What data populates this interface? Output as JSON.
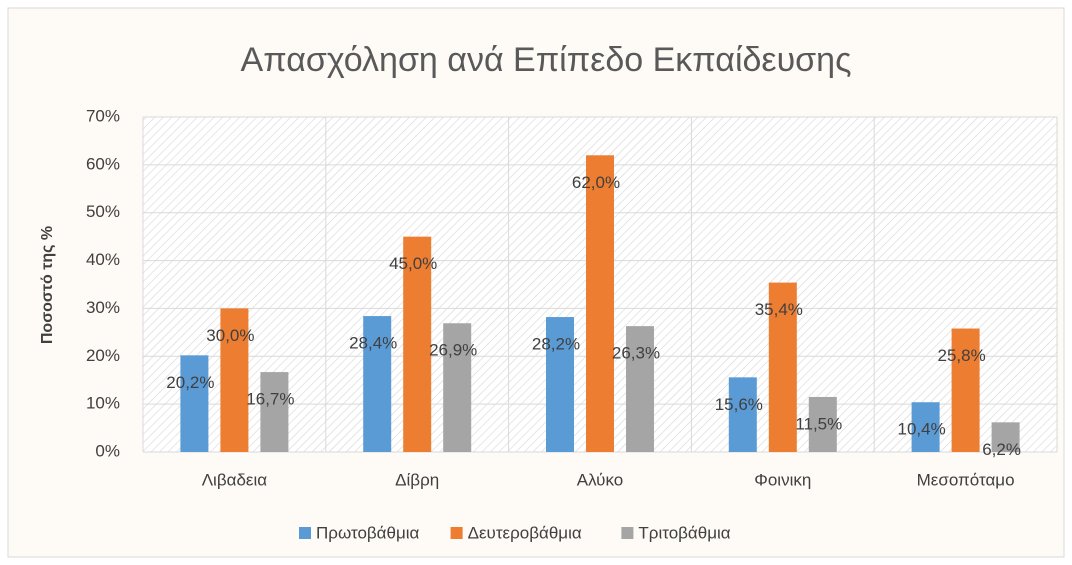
{
  "chart_data": {
    "type": "bar",
    "title": "Απασχόληση ανά Επίπεδο Εκπαίδευσης",
    "y_label": "Ποσοστό της %",
    "categories": [
      "Λιβαδεια",
      "Δίβρη",
      "Αλύκο",
      "Φοινικη",
      "Μεσοπόταμο"
    ],
    "series": [
      {
        "name": "Πρωτοβάθμια",
        "color": "#5b9bd5",
        "values": [
          20.2,
          28.4,
          28.2,
          15.6,
          10.4
        ],
        "value_labels": [
          "20,2%",
          "28,4%",
          "28,2%",
          "15,6%",
          "10,4%"
        ]
      },
      {
        "name": "Δευτεροβάθμια",
        "color": "#ed7d31",
        "values": [
          30.0,
          45.0,
          62.0,
          35.4,
          25.8
        ],
        "value_labels": [
          "30,0%",
          "45,0%",
          "62,0%",
          "35,4%",
          "25,8%"
        ]
      },
      {
        "name": "Τριτοβάθμια",
        "color": "#a5a5a5",
        "values": [
          16.7,
          26.9,
          26.3,
          11.5,
          6.2
        ],
        "value_labels": [
          "16,7%",
          "26,9%",
          "26,3%",
          "11,5%",
          "6,2%"
        ]
      }
    ],
    "ylim": [
      0,
      70
    ],
    "yticks": [
      {
        "value": 0,
        "label": "0%"
      },
      {
        "value": 10,
        "label": "10%"
      },
      {
        "value": 20,
        "label": "20%"
      },
      {
        "value": 30,
        "label": "30%"
      },
      {
        "value": 40,
        "label": "40%"
      },
      {
        "value": 50,
        "label": "50%"
      },
      {
        "value": 60,
        "label": "60%"
      },
      {
        "value": 70,
        "label": "70%"
      }
    ],
    "grid": true,
    "legend": "bottom"
  }
}
